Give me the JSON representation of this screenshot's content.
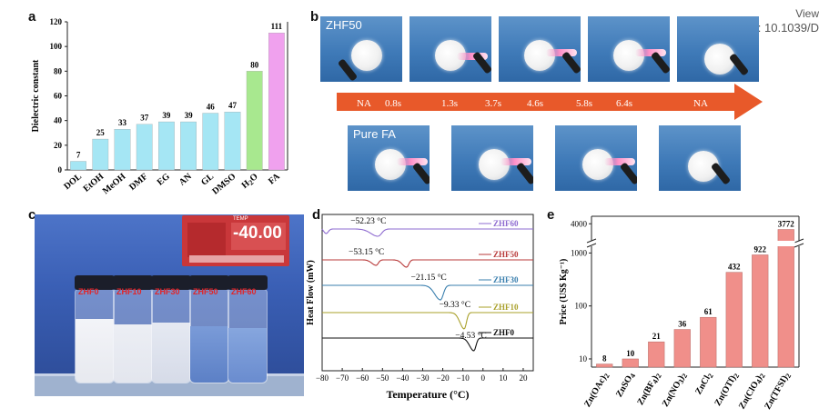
{
  "doi": {
    "view": "View",
    "code": "DOI: 10.1039/D"
  },
  "panel_letters": {
    "a": "a",
    "b": "b",
    "c": "c",
    "d": "d",
    "e": "e"
  },
  "panel_b": {
    "label_top": "ZHF50",
    "label_bottom": "Pure FA",
    "timeline_labels": [
      "NA",
      "0.8s",
      "1.3s",
      "3.7s",
      "4.6s",
      "5.8s",
      "6.4s",
      "NA"
    ],
    "arrow_color": "#e8592a"
  },
  "panel_c": {
    "controller_title": "TEMP",
    "controller_value": "-40.00",
    "vial_labels": [
      "ZHF0",
      "ZHF10",
      "ZHF30",
      "ZHF50",
      "ZHF60"
    ]
  },
  "chart_data": [
    {
      "type": "bar",
      "panel": "a",
      "categories": [
        "DOL",
        "EtOH",
        "MeOH",
        "DMF",
        "EG",
        "AN",
        "GL",
        "DMSO",
        "H2O",
        "FA"
      ],
      "values": [
        7,
        25,
        33,
        37,
        39,
        39,
        46,
        47,
        80,
        111
      ],
      "colors": [
        "#a5e6f4",
        "#a5e6f4",
        "#a5e6f4",
        "#a5e6f4",
        "#a5e6f4",
        "#a5e6f4",
        "#a5e6f4",
        "#a5e6f4",
        "#a8e88f",
        "#f0a1ee"
      ],
      "ylabel": "Dielectric constant",
      "ylim": [
        0,
        120
      ],
      "yticks": [
        0,
        20,
        40,
        60,
        80,
        100,
        120
      ]
    },
    {
      "type": "line",
      "panel": "d",
      "xlabel": "Temperature (°C)",
      "ylabel": "Heat Flow (mW)",
      "xlim": [
        -80,
        25
      ],
      "xticks": [
        -80,
        -70,
        -60,
        -50,
        -40,
        -30,
        -20,
        -10,
        0,
        10,
        20
      ],
      "series": [
        {
          "name": "ZHF60",
          "color": "#8e6bd0",
          "peaks": [
            -52.23
          ],
          "annotation": "−52.23 °C"
        },
        {
          "name": "ZHF50",
          "color": "#b83a3a",
          "peaks": [
            -53.15,
            -38
          ],
          "annotation": "−53.15 °C"
        },
        {
          "name": "ZHF30",
          "color": "#3a7fae",
          "peaks": [
            -21.15
          ],
          "annotation": "−21.15 °C"
        },
        {
          "name": "ZHF10",
          "color": "#a9a02a",
          "peaks": [
            -9.33
          ],
          "annotation": "−9.33 °C"
        },
        {
          "name": "ZHF0",
          "color": "#111111",
          "peaks": [
            -4.53
          ],
          "annotation": "−4.53 °C"
        }
      ]
    },
    {
      "type": "bar",
      "panel": "e",
      "categories": [
        "Zn(OAc)2",
        "ZnSO4",
        "Zn(BF4)2",
        "Zn(NO3)2",
        "ZnCl2",
        "Zn(OTf)2",
        "Zn(ClO4)2",
        "Zn(TFSI)2"
      ],
      "values": [
        8,
        10,
        21,
        36,
        61,
        432,
        922,
        3772
      ],
      "ylabel": "Price (US$ Kg⁻¹)",
      "yscale": "log, broken axis",
      "ytick_labels": [
        "10",
        "100",
        "1000",
        "4000"
      ],
      "bar_color": "#f08f8a"
    }
  ]
}
